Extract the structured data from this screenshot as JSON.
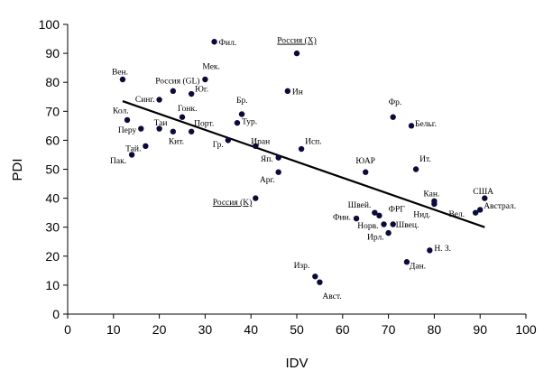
{
  "chart_data": {
    "type": "scatter",
    "title": "",
    "xlabel": "IDV",
    "ylabel": "PDI",
    "xlim": [
      0,
      100
    ],
    "ylim": [
      0,
      100
    ],
    "xticks": [
      0,
      10,
      20,
      30,
      40,
      50,
      60,
      70,
      80,
      90,
      100
    ],
    "yticks": [
      0,
      10,
      20,
      30,
      40,
      50,
      60,
      70,
      80,
      90,
      100
    ],
    "grid": false,
    "legend": "none",
    "trendline": {
      "x": [
        12,
        91
      ],
      "y": [
        73.5,
        30
      ]
    },
    "points": [
      {
        "label": "Вен.",
        "x": 12,
        "y": 81,
        "anchor": "start",
        "dx": -12,
        "dy": -9
      },
      {
        "label": "Фил.",
        "x": 32,
        "y": 94,
        "anchor": "start",
        "dx": 5,
        "dy": 0
      },
      {
        "label": "Россия (X)",
        "x": 50,
        "y": 90,
        "anchor": "middle",
        "dx": 0,
        "dy": -15,
        "underline": true
      },
      {
        "label": "Россия (GL)",
        "x": 23,
        "y": 77,
        "anchor": "middle",
        "dx": 5,
        "dy": -12
      },
      {
        "label": "Мек.",
        "x": 30,
        "y": 81,
        "anchor": "start",
        "dx": -3,
        "dy": -15
      },
      {
        "label": "Юг.",
        "x": 27,
        "y": 76,
        "anchor": "start",
        "dx": 4,
        "dy": -6
      },
      {
        "label": "Синг.",
        "x": 20,
        "y": 74,
        "anchor": "end",
        "dx": -5,
        "dy": -1
      },
      {
        "label": "Ин",
        "x": 48,
        "y": 77,
        "anchor": "start",
        "dx": 5,
        "dy": 0
      },
      {
        "label": "Бр.",
        "x": 38,
        "y": 69,
        "anchor": "start",
        "dx": -6,
        "dy": -16
      },
      {
        "label": "Гонк.",
        "x": 25,
        "y": 68,
        "anchor": "start",
        "dx": -5,
        "dy": -10
      },
      {
        "label": "Кол.",
        "x": 13,
        "y": 67,
        "anchor": "start",
        "dx": -16,
        "dy": -11
      },
      {
        "label": "Тур.",
        "x": 37,
        "y": 66,
        "anchor": "start",
        "dx": 5,
        "dy": -2
      },
      {
        "label": "Порт.",
        "x": 27,
        "y": 63,
        "anchor": "start",
        "dx": 3,
        "dy": -10
      },
      {
        "label": "Таи",
        "x": 20,
        "y": 64,
        "anchor": "start",
        "dx": -6,
        "dy": -7
      },
      {
        "label": "Перу",
        "x": 16,
        "y": 64,
        "anchor": "end",
        "dx": -5,
        "dy": 1
      },
      {
        "label": "Кит.",
        "x": 23,
        "y": 63,
        "anchor": "start",
        "dx": -5,
        "dy": 10
      },
      {
        "label": "Гр.",
        "x": 35,
        "y": 60,
        "anchor": "end",
        "dx": -5,
        "dy": 4
      },
      {
        "label": "Иран",
        "x": 41,
        "y": 58,
        "anchor": "start",
        "dx": -5,
        "dy": -6
      },
      {
        "label": "Исп.",
        "x": 51,
        "y": 57,
        "anchor": "start",
        "dx": 4,
        "dy": -9
      },
      {
        "label": "Тай.",
        "x": 17,
        "y": 58,
        "anchor": "end",
        "dx": -5,
        "dy": 2
      },
      {
        "label": "Пак.",
        "x": 14,
        "y": 55,
        "anchor": "end",
        "dx": -6,
        "dy": 6
      },
      {
        "label": "Яп.",
        "x": 46,
        "y": 54,
        "anchor": "end",
        "dx": -6,
        "dy": 1
      },
      {
        "label": "Арг.",
        "x": 46,
        "y": 49,
        "anchor": "end",
        "dx": -4,
        "dy": 8
      },
      {
        "label": "ЮАР",
        "x": 65,
        "y": 49,
        "anchor": "middle",
        "dx": 0,
        "dy": -13
      },
      {
        "label": "Ит.",
        "x": 76,
        "y": 50,
        "anchor": "start",
        "dx": 4,
        "dy": -12
      },
      {
        "label": "Фр.",
        "x": 71,
        "y": 68,
        "anchor": "start",
        "dx": -5,
        "dy": -17
      },
      {
        "label": "Бельг.",
        "x": 75,
        "y": 65,
        "anchor": "start",
        "dx": 4,
        "dy": -3
      },
      {
        "label": "Россия (K)",
        "x": 41,
        "y": 40,
        "anchor": "end",
        "dx": -4,
        "dy": 4,
        "underline": true
      },
      {
        "label": "Кан.",
        "x": 80,
        "y": 39,
        "anchor": "start",
        "dx": -12,
        "dy": -9
      },
      {
        "label": "США",
        "x": 91,
        "y": 40,
        "anchor": "start",
        "dx": -13,
        "dy": -8
      },
      {
        "label": "Австрал.",
        "x": 90,
        "y": 36,
        "anchor": "start",
        "dx": 4,
        "dy": -5
      },
      {
        "label": "Нид.",
        "x": 80,
        "y": 38,
        "anchor": "end",
        "dx": -4,
        "dy": 11
      },
      {
        "label": "Вел.",
        "x": 89,
        "y": 35,
        "anchor": "end",
        "dx": -12,
        "dy": 1
      },
      {
        "label": "Швей.",
        "x": 67,
        "y": 35,
        "anchor": "end",
        "dx": -4,
        "dy": -9
      },
      {
        "label": "ФРГ",
        "x": 68,
        "y": 34,
        "anchor": "start",
        "dx": 10,
        "dy": -8
      },
      {
        "label": "Фин.",
        "x": 63,
        "y": 33,
        "anchor": "end",
        "dx": -6,
        "dy": -2
      },
      {
        "label": "Норв.",
        "x": 69,
        "y": 31,
        "anchor": "end",
        "dx": -6,
        "dy": 1
      },
      {
        "label": "Швец.",
        "x": 71,
        "y": 31,
        "anchor": "start",
        "dx": 3,
        "dy": 0
      },
      {
        "label": "Ирл.",
        "x": 70,
        "y": 28,
        "anchor": "end",
        "dx": -5,
        "dy": 4
      },
      {
        "label": "Н. З.",
        "x": 79,
        "y": 22,
        "anchor": "start",
        "dx": 5,
        "dy": -3
      },
      {
        "label": "Дан.",
        "x": 74,
        "y": 18,
        "anchor": "start",
        "dx": 3,
        "dy": 4
      },
      {
        "label": "Изр.",
        "x": 54,
        "y": 13,
        "anchor": "end",
        "dx": -6,
        "dy": -13
      },
      {
        "label": "Авст.",
        "x": 55,
        "y": 11,
        "anchor": "start",
        "dx": 3,
        "dy": 15
      }
    ]
  }
}
